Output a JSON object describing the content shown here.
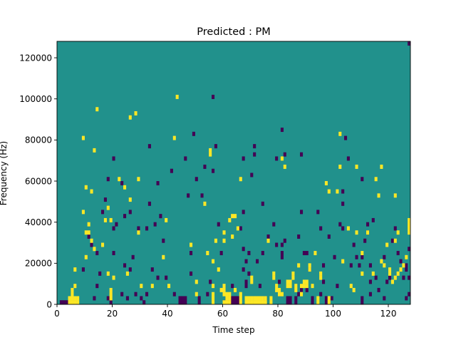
{
  "chart_data": {
    "type": "heatmap",
    "title": "Predicted : PM",
    "xlabel": "Time step",
    "ylabel": "Frequency (Hz)",
    "xlim": [
      0,
      128
    ],
    "ylim": [
      0,
      128000
    ],
    "x_ticks": [
      0,
      20,
      40,
      60,
      80,
      100,
      120
    ],
    "y_ticks": [
      0,
      20000,
      40000,
      60000,
      80000,
      100000,
      120000
    ],
    "y_tick_labels": [
      "0",
      "20000",
      "40000",
      "60000",
      "80000",
      "100000",
      "120000"
    ],
    "cell_width": 1,
    "cell_height": 2000,
    "background_value": 0.5,
    "colormap": {
      "low": "#440154",
      "mid": "#21918c",
      "high": "#fde725"
    },
    "grid": false,
    "cells_high": [
      [
        4,
        0
      ],
      [
        4,
        1
      ],
      [
        5,
        0
      ],
      [
        5,
        1
      ],
      [
        5,
        2
      ],
      [
        5,
        3
      ],
      [
        6,
        0
      ],
      [
        6,
        1
      ],
      [
        6,
        4
      ],
      [
        6,
        8
      ],
      [
        7,
        0
      ],
      [
        7,
        1
      ],
      [
        9,
        22
      ],
      [
        9,
        40
      ],
      [
        10,
        11
      ],
      [
        10,
        17
      ],
      [
        10,
        28
      ],
      [
        11,
        17
      ],
      [
        11,
        19
      ],
      [
        12,
        15
      ],
      [
        12,
        27
      ],
      [
        13,
        13
      ],
      [
        13,
        37
      ],
      [
        14,
        47
      ],
      [
        16,
        14
      ],
      [
        17,
        20
      ],
      [
        18,
        7
      ],
      [
        18,
        23
      ],
      [
        19,
        1
      ],
      [
        19,
        2
      ],
      [
        19,
        3
      ],
      [
        19,
        20
      ],
      [
        20,
        6
      ],
      [
        22,
        30
      ],
      [
        24,
        28
      ],
      [
        25,
        7
      ],
      [
        26,
        25
      ],
      [
        26,
        45
      ],
      [
        28,
        46
      ],
      [
        29,
        17
      ],
      [
        29,
        30
      ],
      [
        30,
        4
      ],
      [
        34,
        4
      ],
      [
        38,
        11
      ],
      [
        39,
        20
      ],
      [
        40,
        4
      ],
      [
        42,
        40
      ],
      [
        43,
        50
      ],
      [
        48,
        14
      ],
      [
        50,
        2
      ],
      [
        50,
        5
      ],
      [
        53,
        24
      ],
      [
        54,
        12
      ],
      [
        55,
        36
      ],
      [
        55,
        37
      ],
      [
        56,
        0
      ],
      [
        56,
        1
      ],
      [
        56,
        2
      ],
      [
        56,
        4
      ],
      [
        56,
        10
      ],
      [
        57,
        15
      ],
      [
        58,
        8
      ],
      [
        59,
        3
      ],
      [
        60,
        0
      ],
      [
        60,
        2
      ],
      [
        60,
        3
      ],
      [
        60,
        4
      ],
      [
        60,
        15
      ],
      [
        60,
        17
      ],
      [
        61,
        0
      ],
      [
        61,
        1
      ],
      [
        61,
        2
      ],
      [
        62,
        0
      ],
      [
        62,
        1
      ],
      [
        62,
        2
      ],
      [
        62,
        20
      ],
      [
        63,
        16
      ],
      [
        63,
        21
      ],
      [
        64,
        3
      ],
      [
        64,
        21
      ],
      [
        65,
        18
      ],
      [
        66,
        0
      ],
      [
        66,
        1
      ],
      [
        66,
        2
      ],
      [
        66,
        30
      ],
      [
        68,
        0
      ],
      [
        68,
        1
      ],
      [
        69,
        0
      ],
      [
        69,
        1
      ],
      [
        70,
        0
      ],
      [
        70,
        1
      ],
      [
        70,
        5
      ],
      [
        70,
        6
      ],
      [
        71,
        0
      ],
      [
        71,
        1
      ],
      [
        72,
        0
      ],
      [
        72,
        1
      ],
      [
        73,
        0
      ],
      [
        73,
        1
      ],
      [
        74,
        0
      ],
      [
        74,
        1
      ],
      [
        75,
        0
      ],
      [
        75,
        1
      ],
      [
        76,
        15
      ],
      [
        77,
        0
      ],
      [
        77,
        1
      ],
      [
        78,
        6
      ],
      [
        78,
        7
      ],
      [
        79,
        3
      ],
      [
        79,
        4
      ],
      [
        80,
        2
      ],
      [
        80,
        3
      ],
      [
        81,
        2
      ],
      [
        81,
        35
      ],
      [
        82,
        33
      ],
      [
        83,
        4
      ],
      [
        83,
        5
      ],
      [
        84,
        4
      ],
      [
        84,
        5
      ],
      [
        85,
        6
      ],
      [
        85,
        7
      ],
      [
        86,
        3
      ],
      [
        86,
        4
      ],
      [
        87,
        9
      ],
      [
        88,
        2
      ],
      [
        88,
        4
      ],
      [
        89,
        4
      ],
      [
        89,
        5
      ],
      [
        90,
        4
      ],
      [
        90,
        5
      ],
      [
        91,
        8
      ],
      [
        91,
        9
      ],
      [
        92,
        4
      ],
      [
        93,
        12
      ],
      [
        94,
        0
      ],
      [
        94,
        1
      ],
      [
        95,
        6
      ],
      [
        95,
        7
      ],
      [
        97,
        29
      ],
      [
        98,
        0
      ],
      [
        98,
        1
      ],
      [
        98,
        27
      ],
      [
        101,
        27
      ],
      [
        102,
        33
      ],
      [
        102,
        41
      ],
      [
        103,
        10
      ],
      [
        105,
        18
      ],
      [
        106,
        4
      ],
      [
        107,
        3
      ],
      [
        108,
        17
      ],
      [
        108,
        33
      ],
      [
        110,
        7
      ],
      [
        110,
        12
      ],
      [
        112,
        17
      ],
      [
        114,
        7
      ],
      [
        115,
        30
      ],
      [
        116,
        26
      ],
      [
        117,
        10
      ],
      [
        117,
        33
      ],
      [
        118,
        9
      ],
      [
        119,
        14
      ],
      [
        120,
        7
      ],
      [
        120,
        8
      ],
      [
        121,
        5
      ],
      [
        122,
        6
      ],
      [
        122,
        15
      ],
      [
        122,
        26
      ],
      [
        123,
        7
      ],
      [
        123,
        17
      ],
      [
        124,
        8
      ],
      [
        125,
        9
      ],
      [
        126,
        11
      ],
      [
        127,
        17
      ],
      [
        127,
        18
      ],
      [
        127,
        19
      ],
      [
        127,
        20
      ]
    ],
    "cells_low": [
      [
        1,
        0
      ],
      [
        2,
        0
      ],
      [
        3,
        0
      ],
      [
        9,
        8
      ],
      [
        11,
        16
      ],
      [
        12,
        14
      ],
      [
        13,
        1
      ],
      [
        14,
        4
      ],
      [
        14,
        12
      ],
      [
        15,
        7
      ],
      [
        16,
        22
      ],
      [
        17,
        25
      ],
      [
        18,
        1
      ],
      [
        18,
        30
      ],
      [
        19,
        0
      ],
      [
        20,
        12
      ],
      [
        20,
        18
      ],
      [
        20,
        35
      ],
      [
        21,
        19
      ],
      [
        23,
        2
      ],
      [
        23,
        29
      ],
      [
        24,
        9
      ],
      [
        24,
        21
      ],
      [
        25,
        1
      ],
      [
        26,
        8
      ],
      [
        26,
        22
      ],
      [
        27,
        11
      ],
      [
        28,
        2
      ],
      [
        29,
        18
      ],
      [
        30,
        1
      ],
      [
        31,
        0
      ],
      [
        32,
        2
      ],
      [
        32,
        18
      ],
      [
        33,
        24
      ],
      [
        33,
        38
      ],
      [
        34,
        8
      ],
      [
        35,
        19
      ],
      [
        36,
        6
      ],
      [
        36,
        29
      ],
      [
        37,
        21
      ],
      [
        38,
        15
      ],
      [
        39,
        6
      ],
      [
        41,
        32
      ],
      [
        42,
        2
      ],
      [
        44,
        0
      ],
      [
        44,
        1
      ],
      [
        45,
        0
      ],
      [
        45,
        1
      ],
      [
        46,
        0
      ],
      [
        46,
        1
      ],
      [
        46,
        35
      ],
      [
        47,
        26
      ],
      [
        48,
        7
      ],
      [
        48,
        12
      ],
      [
        49,
        41
      ],
      [
        50,
        30
      ],
      [
        51,
        0
      ],
      [
        51,
        1
      ],
      [
        52,
        26
      ],
      [
        53,
        33
      ],
      [
        54,
        2
      ],
      [
        55,
        5
      ],
      [
        56,
        32
      ],
      [
        56,
        50
      ],
      [
        57,
        38
      ],
      [
        58,
        19
      ],
      [
        59,
        12
      ],
      [
        60,
        0
      ],
      [
        61,
        0
      ],
      [
        61,
        1
      ],
      [
        62,
        0
      ],
      [
        62,
        1
      ],
      [
        63,
        0
      ],
      [
        63,
        1
      ],
      [
        63,
        4
      ],
      [
        64,
        0
      ],
      [
        64,
        1
      ],
      [
        65,
        0
      ],
      [
        65,
        1
      ],
      [
        66,
        18
      ],
      [
        67,
        8
      ],
      [
        67,
        13
      ],
      [
        67,
        22
      ],
      [
        67,
        35
      ],
      [
        68,
        4
      ],
      [
        68,
        5
      ],
      [
        68,
        10
      ],
      [
        69,
        7
      ],
      [
        69,
        12
      ],
      [
        70,
        31
      ],
      [
        71,
        36
      ],
      [
        71,
        38
      ],
      [
        72,
        10
      ],
      [
        73,
        4
      ],
      [
        74,
        12
      ],
      [
        74,
        24
      ],
      [
        75,
        1
      ],
      [
        76,
        16
      ],
      [
        78,
        19
      ],
      [
        79,
        14
      ],
      [
        79,
        35
      ],
      [
        80,
        2
      ],
      [
        80,
        5
      ],
      [
        81,
        11
      ],
      [
        81,
        12
      ],
      [
        81,
        14
      ],
      [
        81,
        42
      ],
      [
        82,
        15
      ],
      [
        82,
        36
      ],
      [
        83,
        0
      ],
      [
        83,
        1
      ],
      [
        84,
        0
      ],
      [
        84,
        1
      ],
      [
        86,
        0
      ],
      [
        86,
        1
      ],
      [
        87,
        2
      ],
      [
        87,
        16
      ],
      [
        88,
        3
      ],
      [
        88,
        22
      ],
      [
        88,
        36
      ],
      [
        89,
        12
      ],
      [
        90,
        3
      ],
      [
        90,
        12
      ],
      [
        91,
        8
      ],
      [
        92,
        0
      ],
      [
        92,
        1
      ],
      [
        94,
        22
      ],
      [
        95,
        2
      ],
      [
        95,
        18
      ],
      [
        96,
        5
      ],
      [
        96,
        9
      ],
      [
        97,
        0
      ],
      [
        97,
        1
      ],
      [
        98,
        16
      ],
      [
        99,
        1
      ],
      [
        100,
        11
      ],
      [
        101,
        4
      ],
      [
        102,
        19
      ],
      [
        103,
        18
      ],
      [
        103,
        24
      ],
      [
        103,
        27
      ],
      [
        104,
        40
      ],
      [
        105,
        35
      ],
      [
        106,
        9
      ],
      [
        107,
        14
      ],
      [
        108,
        11
      ],
      [
        109,
        9
      ],
      [
        110,
        0
      ],
      [
        110,
        1
      ],
      [
        110,
        11
      ],
      [
        110,
        30
      ],
      [
        111,
        15
      ],
      [
        112,
        17
      ],
      [
        112,
        19
      ],
      [
        113,
        2
      ],
      [
        113,
        5
      ],
      [
        113,
        9
      ],
      [
        114,
        20
      ],
      [
        115,
        6
      ],
      [
        116,
        3
      ],
      [
        118,
        1
      ],
      [
        118,
        11
      ],
      [
        119,
        5
      ],
      [
        120,
        6
      ],
      [
        121,
        15
      ],
      [
        122,
        18
      ],
      [
        123,
        12
      ],
      [
        124,
        10
      ],
      [
        125,
        6
      ],
      [
        126,
        1
      ],
      [
        126,
        8
      ],
      [
        126,
        9
      ],
      [
        127,
        2
      ],
      [
        127,
        6
      ],
      [
        127,
        13
      ],
      [
        127,
        63
      ]
    ]
  }
}
